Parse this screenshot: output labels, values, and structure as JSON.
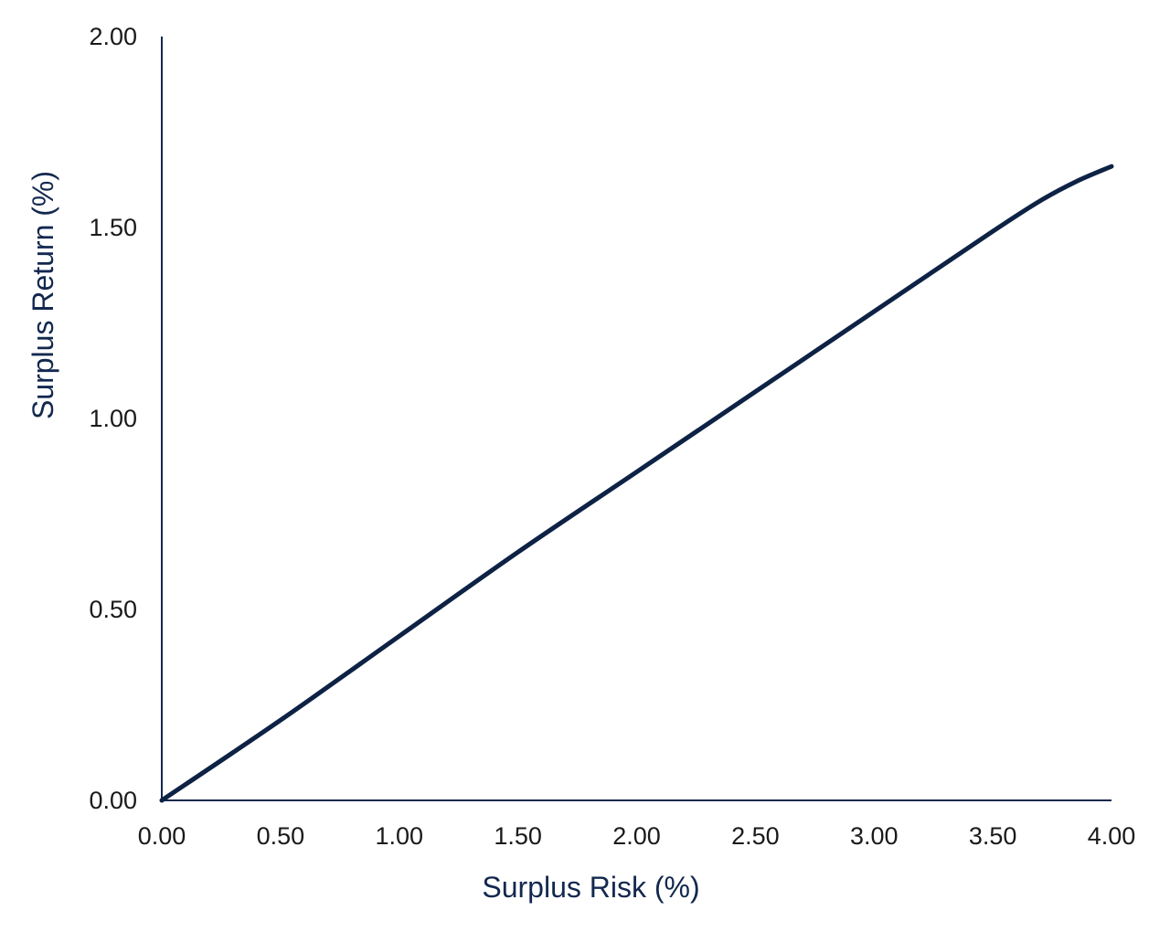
{
  "chart_data": {
    "type": "line",
    "title": "",
    "xlabel": "Surplus Risk (%)",
    "ylabel": "Surplus Return (%)",
    "xlim": [
      0,
      4
    ],
    "ylim": [
      0,
      2
    ],
    "xticks": [
      "0.00",
      "0.50",
      "1.00",
      "1.50",
      "2.00",
      "2.50",
      "3.00",
      "3.50",
      "4.00"
    ],
    "yticks": [
      "0.00",
      "0.50",
      "1.00",
      "1.50",
      "2.00"
    ],
    "grid": false,
    "legend": "none",
    "series": [
      {
        "color": "#0d2244",
        "x": [
          0.0,
          0.5,
          1.0,
          1.5,
          2.0,
          2.5,
          3.0,
          3.5,
          3.7,
          3.85,
          4.0
        ],
        "y": [
          0.0,
          0.21,
          0.43,
          0.65,
          0.86,
          1.07,
          1.28,
          1.49,
          1.57,
          1.62,
          1.66
        ]
      }
    ]
  }
}
